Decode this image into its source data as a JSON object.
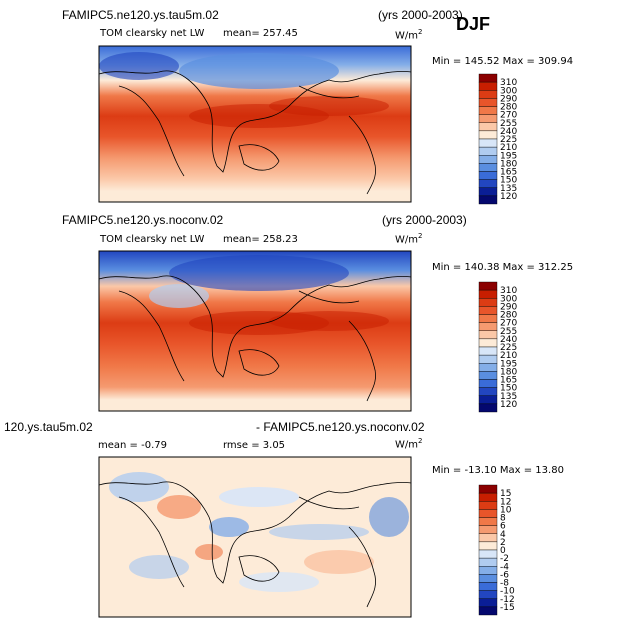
{
  "season": "DJF",
  "panels": [
    {
      "case_title": "FAMIPC5.ne120.ys.tau5m.02",
      "years": "(yrs 2000-2003)",
      "variable": "TOM clearsky net LW",
      "stat1": "mean= 257.45",
      "stat2": "",
      "units": "W/m",
      "units_sup": "2",
      "minmax": "Min = 145.52 Max = 309.94",
      "levels": [
        "310",
        "300",
        "290",
        "280",
        "270",
        "255",
        "240",
        "225",
        "210",
        "195",
        "180",
        "165",
        "150",
        "135",
        "120"
      ],
      "colors": [
        "#8b0000",
        "#c81e00",
        "#dc3c14",
        "#e8552a",
        "#f07848",
        "#f59a70",
        "#fbc8a8",
        "#fdebd8",
        "#d8e6f8",
        "#b0ccf0",
        "#84aee8",
        "#5a8ee0",
        "#3a6cd8",
        "#2246c0",
        "#0a1e96",
        "#04086e"
      ]
    },
    {
      "case_title": "FAMIPC5.ne120.ys.noconv.02",
      "years": "(yrs 2000-2003)",
      "variable": "TOM clearsky net LW",
      "stat1": "mean= 258.23",
      "stat2": "",
      "units": "W/m",
      "units_sup": "2",
      "minmax": "Min = 140.38 Max = 312.25",
      "levels": [
        "310",
        "300",
        "290",
        "280",
        "270",
        "255",
        "240",
        "225",
        "210",
        "195",
        "180",
        "165",
        "150",
        "135",
        "120"
      ],
      "colors": [
        "#8b0000",
        "#c81e00",
        "#dc3c14",
        "#e8552a",
        "#f07848",
        "#f59a70",
        "#fbc8a8",
        "#fdebd8",
        "#d8e6f8",
        "#b0ccf0",
        "#84aee8",
        "#5a8ee0",
        "#3a6cd8",
        "#2246c0",
        "#0a1e96",
        "#04086e"
      ]
    },
    {
      "case_title": "120.ys.tau5m.02",
      "years": "- FAMIPC5.ne120.ys.noconv.02",
      "variable": "",
      "stat1": "mean =  -0.79",
      "stat2": "rmse =    3.05",
      "units": "W/m",
      "units_sup": "2",
      "minmax": "Min = -13.10 Max =  13.80",
      "levels": [
        "15",
        "12",
        "10",
        "8",
        "6",
        "4",
        "2",
        "0",
        "-2",
        "-4",
        "-6",
        "-8",
        "-10",
        "-12",
        "-15"
      ],
      "colors": [
        "#8b0000",
        "#c81e00",
        "#dc3c14",
        "#e8552a",
        "#f07848",
        "#f59a70",
        "#fbc8a8",
        "#fdebd8",
        "#d8e6f8",
        "#b0ccf0",
        "#84aee8",
        "#5a8ee0",
        "#3a6cd8",
        "#2246c0",
        "#0a1e96",
        "#04086e"
      ]
    }
  ]
}
